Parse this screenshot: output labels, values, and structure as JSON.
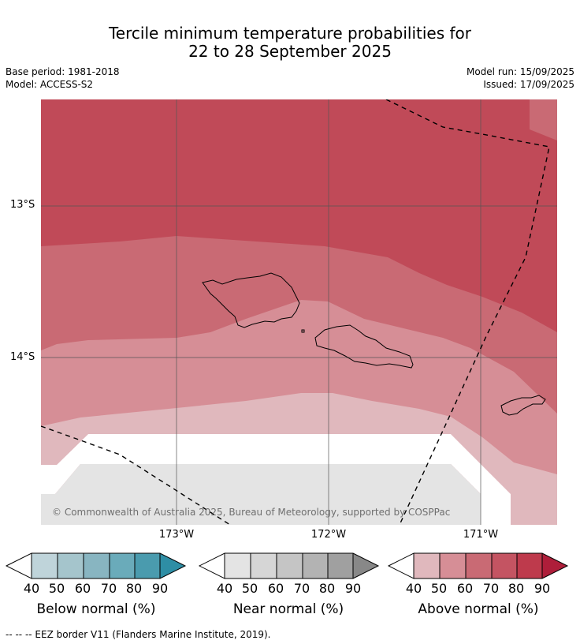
{
  "title_line1": "Tercile minimum temperature probabilities for",
  "title_line2": "22 to 28 September 2025",
  "base_period": "Base period: 1981-2018",
  "model": "Model: ACCESS-S2",
  "model_run": "Model run: 15/09/2025",
  "issued": "Issued: 17/09/2025",
  "copyright": "© Commonwealth of Australia 2025, Bureau of Meteorology, supported by COSPPac",
  "lat_labels": [
    "13°S",
    "14°S"
  ],
  "lon_labels": [
    "173°W",
    "172°W",
    "171°W"
  ],
  "colorbars": [
    {
      "title": "Below normal (%)",
      "ticks": [
        "40",
        "50",
        "60",
        "70",
        "80",
        "90"
      ],
      "colors": [
        "#bfd4da",
        "#a5c5cc",
        "#88b5c1",
        "#6aabba",
        "#4a9bae",
        "#2e8ea5"
      ]
    },
    {
      "title": "Near normal (%)",
      "ticks": [
        "40",
        "50",
        "60",
        "70",
        "80",
        "90"
      ],
      "colors": [
        "#e4e4e4",
        "#d6d6d6",
        "#c5c5c5",
        "#b3b3b3",
        "#a0a0a0",
        "#888888"
      ]
    },
    {
      "title": "Above normal (%)",
      "ticks": [
        "40",
        "50",
        "60",
        "70",
        "80",
        "90"
      ],
      "colors": [
        "#e0b8bd",
        "#d68e96",
        "#c96a74",
        "#c45462",
        "#be3a4c",
        "#ae1e3a"
      ]
    }
  ],
  "footer": "--  --  -- EEZ border V11 (Flanders Marine Institute, 2019)."
}
